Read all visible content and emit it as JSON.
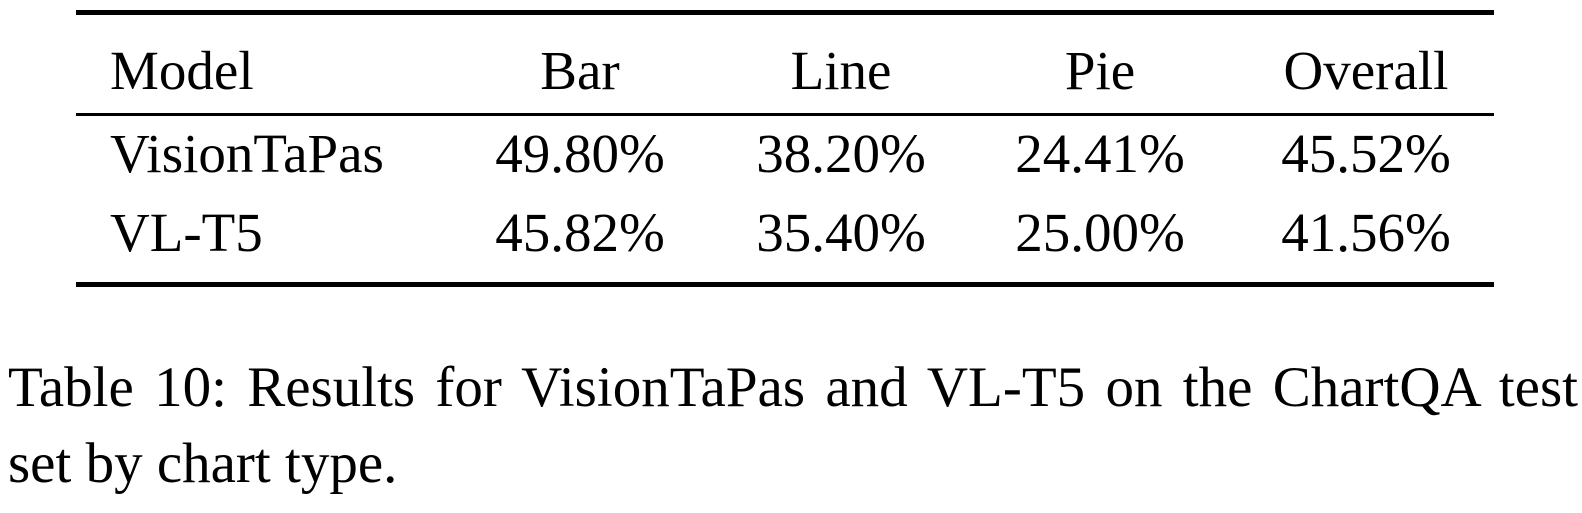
{
  "table": {
    "columns": [
      "Model",
      "Bar",
      "Line",
      "Pie",
      "Overall"
    ],
    "rows": [
      [
        "VisionTaPas",
        "49.80%",
        "38.20%",
        "24.41%",
        "45.52%"
      ],
      [
        "VL-T5",
        "45.82%",
        "35.40%",
        "25.00%",
        "41.56%"
      ]
    ]
  },
  "caption": "Table 10: Results for VisionTaPas and VL-T5 on the ChartQA test set by chart type."
}
